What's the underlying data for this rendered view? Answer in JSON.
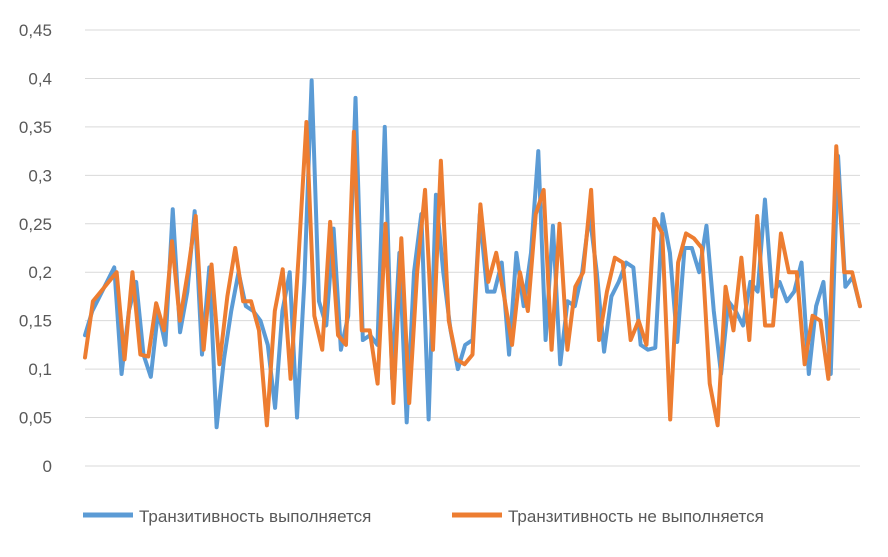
{
  "chart_data": {
    "type": "line",
    "title": "",
    "xlabel": "",
    "ylabel": "",
    "ylim": [
      0,
      0.45
    ],
    "yticks": [
      "0",
      "0,05",
      "0,1",
      "0,15",
      "0,2",
      "0,25",
      "0,3",
      "0,35",
      "0,4",
      "0,45"
    ],
    "grid": true,
    "legend_position": "bottom",
    "series": [
      {
        "name": "Транзитивность выполняется",
        "color": "#5B9BD5",
        "values": [
          0.135,
          0.16,
          0.175,
          0.19,
          0.205,
          0.095,
          0.16,
          0.19,
          0.115,
          0.092,
          0.16,
          0.125,
          0.265,
          0.138,
          0.18,
          0.263,
          0.115,
          0.205,
          0.04,
          0.11,
          0.16,
          0.2,
          0.165,
          0.16,
          0.15,
          0.125,
          0.06,
          0.16,
          0.2,
          0.05,
          0.19,
          0.398,
          0.17,
          0.145,
          0.245,
          0.12,
          0.155,
          0.38,
          0.13,
          0.135,
          0.125,
          0.35,
          0.09,
          0.22,
          0.045,
          0.2,
          0.26,
          0.048,
          0.28,
          0.2,
          0.14,
          0.1,
          0.125,
          0.13,
          0.26,
          0.18,
          0.18,
          0.21,
          0.115,
          0.22,
          0.165,
          0.22,
          0.325,
          0.13,
          0.248,
          0.105,
          0.17,
          0.165,
          0.2,
          0.26,
          0.2,
          0.118,
          0.175,
          0.19,
          0.21,
          0.205,
          0.125,
          0.12,
          0.122,
          0.26,
          0.22,
          0.128,
          0.225,
          0.225,
          0.2,
          0.248,
          0.16,
          0.095,
          0.17,
          0.16,
          0.145,
          0.19,
          0.18,
          0.275,
          0.175,
          0.19,
          0.17,
          0.18,
          0.21,
          0.095,
          0.165,
          0.19,
          0.095,
          0.32,
          0.185,
          0.195,
          0.165
        ]
      },
      {
        "name": "Транзитивность не выполняется",
        "color": "#ED7D31",
        "values": [
          0.112,
          0.17,
          0.18,
          0.19,
          0.2,
          0.11,
          0.2,
          0.115,
          0.113,
          0.168,
          0.14,
          0.232,
          0.15,
          0.2,
          0.258,
          0.12,
          0.208,
          0.105,
          0.175,
          0.225,
          0.17,
          0.17,
          0.14,
          0.042,
          0.16,
          0.203,
          0.09,
          0.215,
          0.355,
          0.155,
          0.12,
          0.252,
          0.135,
          0.125,
          0.345,
          0.14,
          0.14,
          0.085,
          0.25,
          0.065,
          0.235,
          0.065,
          0.2,
          0.285,
          0.12,
          0.315,
          0.15,
          0.11,
          0.105,
          0.115,
          0.27,
          0.19,
          0.22,
          0.175,
          0.125,
          0.2,
          0.16,
          0.26,
          0.285,
          0.12,
          0.25,
          0.12,
          0.185,
          0.2,
          0.285,
          0.13,
          0.18,
          0.215,
          0.21,
          0.13,
          0.15,
          0.125,
          0.255,
          0.24,
          0.048,
          0.21,
          0.24,
          0.235,
          0.225,
          0.085,
          0.042,
          0.185,
          0.14,
          0.215,
          0.13,
          0.258,
          0.145,
          0.145,
          0.24,
          0.2,
          0.2,
          0.105,
          0.155,
          0.15,
          0.09,
          0.33,
          0.2,
          0.2,
          0.165
        ]
      }
    ]
  }
}
